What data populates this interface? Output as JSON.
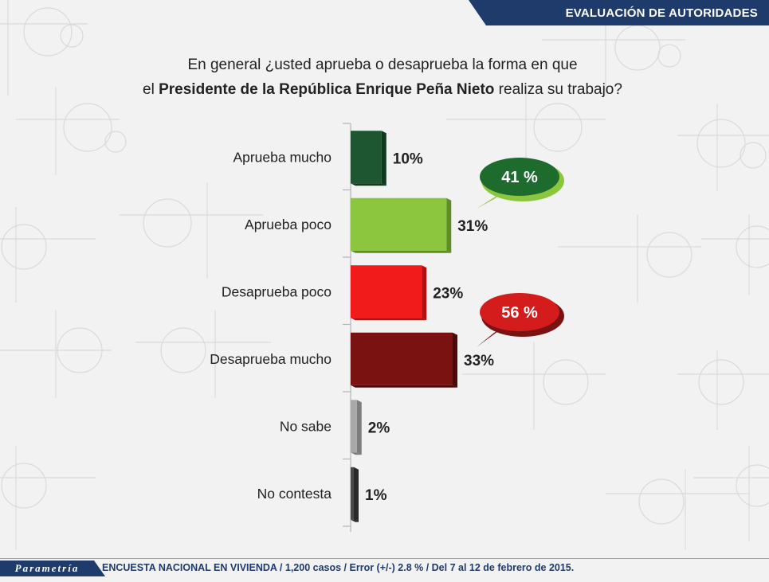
{
  "header": {
    "title": "EVALUACIÓN DE AUTORIDADES"
  },
  "question": {
    "line1": "En general ¿usted aprueba o desaprueba la forma en que",
    "line2_pre": "el ",
    "line2_bold": "Presidente de la República Enrique Peña Nieto",
    "line2_post": " realiza su trabajo?"
  },
  "watermark": "Parametría",
  "chart_data": {
    "type": "bar",
    "orientation": "horizontal",
    "categories": [
      "Aprueba mucho",
      "Aprueba poco",
      "Desaprueba poco",
      "Desaprueba mucho",
      "No sabe",
      "No contesta"
    ],
    "values": [
      10,
      31,
      23,
      33,
      2,
      1
    ],
    "value_labels": [
      "10%",
      "31%",
      "23%",
      "33%",
      "2%",
      "1%"
    ],
    "colors": [
      "#1e5631",
      "#8cc63f",
      "#f21b1b",
      "#7a1212",
      "#a9a9a9",
      "#4a4a4a"
    ],
    "side_colors": [
      "#0f3a1e",
      "#5f8f24",
      "#b01010",
      "#4e0a0a",
      "#7d7d7d",
      "#2a2a2a"
    ],
    "xlim": [
      0,
      33
    ],
    "annotations": [
      {
        "label": "41 %",
        "color": "#1e6b2e",
        "edge": "#8cc63f"
      },
      {
        "label": "56 %",
        "color": "#d41c1c",
        "edge": "#7a1212"
      }
    ]
  },
  "footer": {
    "brand": "Parametría",
    "note": "ENCUESTA NACIONAL EN VIVIENDA / 1,200 casos / Error (+/-) 2.8 % / Del 7 al 12 de febrero de 2015."
  }
}
